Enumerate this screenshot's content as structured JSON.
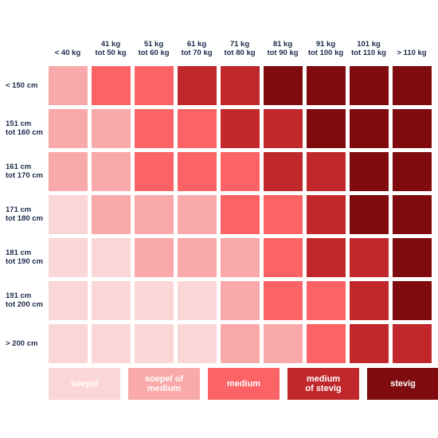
{
  "chart_data": {
    "type": "heatmap",
    "title": "",
    "columns": [
      "< 40 kg",
      "41 kg\ntot 50 kg",
      "51 kg\ntot 60 kg",
      "61 kg\ntot 70 kg",
      "71 kg\ntot 80 kg",
      "81 kg\ntot 90 kg",
      "91 kg\ntot 100 kg",
      "101 kg\ntot 110 kg",
      "> 110 kg"
    ],
    "rows": [
      "< 150 cm",
      "151 cm\ntot 160 cm",
      "161 cm\ntot 170 cm",
      "171 cm\ntot 180 cm",
      "181 cm\ntot 190 cm",
      "191 cm\ntot  200 cm",
      "> 200 cm"
    ],
    "levels": [
      "soepel",
      "soepel of\nmedium",
      "medium",
      "medium\nof stevig",
      "stevig"
    ],
    "level_colors": [
      "#fbd6d6",
      "#f9a9a9",
      "#fb6366",
      "#c1282c",
      "#7f0b0f"
    ],
    "matrix": [
      [
        1,
        2,
        2,
        3,
        3,
        4,
        4,
        4,
        4
      ],
      [
        1,
        1,
        2,
        2,
        3,
        3,
        4,
        4,
        4
      ],
      [
        1,
        1,
        2,
        2,
        2,
        3,
        3,
        4,
        4
      ],
      [
        0,
        1,
        1,
        1,
        2,
        2,
        3,
        4,
        4
      ],
      [
        0,
        0,
        1,
        1,
        1,
        2,
        3,
        3,
        4
      ],
      [
        0,
        0,
        0,
        0,
        1,
        2,
        2,
        3,
        4
      ],
      [
        0,
        0,
        0,
        0,
        1,
        1,
        2,
        3,
        3
      ]
    ]
  }
}
